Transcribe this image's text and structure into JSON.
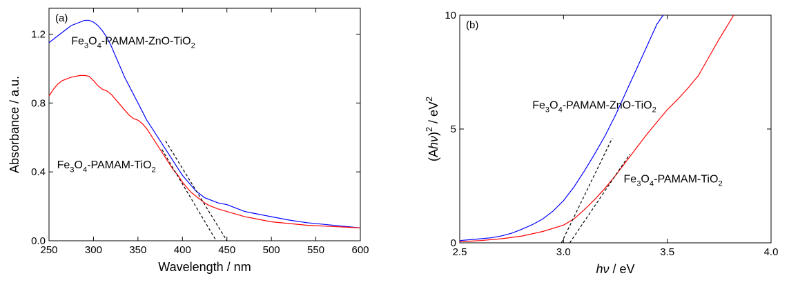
{
  "chart_data": [
    {
      "type": "line",
      "panel_label": "(a)",
      "xlabel": "Wavelength / nm",
      "ylabel": "Absorbance / a.u.",
      "xlim": [
        250,
        600
      ],
      "ylim": [
        0,
        1.35
      ],
      "xticks": [
        250,
        300,
        350,
        400,
        450,
        500,
        550,
        600
      ],
      "yticks": [
        0.0,
        0.4,
        0.8,
        1.2
      ],
      "xtick_labels": [
        "250",
        "300",
        "350",
        "400",
        "450",
        "500",
        "550",
        "600"
      ],
      "ytick_labels": [
        "0.0",
        "0.4",
        "0.8",
        "1.2"
      ],
      "grid": false,
      "series": [
        {
          "color": "#0000ff",
          "x": [
            250,
            255,
            260,
            265,
            270,
            275,
            280,
            285,
            290,
            295,
            300,
            305,
            310,
            315,
            320,
            325,
            330,
            335,
            340,
            345,
            350,
            355,
            360,
            365,
            370,
            375,
            380,
            385,
            390,
            395,
            400,
            405,
            410,
            415,
            420,
            425,
            430,
            435,
            440,
            445,
            450,
            460,
            470,
            480,
            490,
            500,
            520,
            540,
            560,
            580,
            600
          ],
          "y": [
            1.15,
            1.17,
            1.19,
            1.21,
            1.23,
            1.25,
            1.26,
            1.27,
            1.28,
            1.28,
            1.27,
            1.25,
            1.22,
            1.18,
            1.13,
            1.07,
            1.01,
            0.95,
            0.9,
            0.85,
            0.8,
            0.75,
            0.7,
            0.66,
            0.62,
            0.58,
            0.54,
            0.5,
            0.46,
            0.42,
            0.38,
            0.35,
            0.32,
            0.29,
            0.27,
            0.25,
            0.24,
            0.23,
            0.22,
            0.215,
            0.21,
            0.19,
            0.17,
            0.16,
            0.15,
            0.14,
            0.12,
            0.105,
            0.095,
            0.085,
            0.075
          ]
        },
        {
          "color": "#ff0000",
          "x": [
            250,
            255,
            260,
            265,
            270,
            275,
            280,
            285,
            290,
            295,
            300,
            305,
            310,
            315,
            320,
            325,
            330,
            335,
            340,
            345,
            350,
            355,
            360,
            365,
            370,
            375,
            380,
            385,
            390,
            395,
            400,
            405,
            410,
            415,
            420,
            425,
            430,
            440,
            450,
            460,
            470,
            480,
            490,
            500,
            520,
            540,
            560,
            580,
            600
          ],
          "y": [
            0.84,
            0.88,
            0.91,
            0.93,
            0.94,
            0.95,
            0.955,
            0.96,
            0.96,
            0.955,
            0.93,
            0.9,
            0.88,
            0.87,
            0.85,
            0.82,
            0.79,
            0.76,
            0.73,
            0.71,
            0.7,
            0.68,
            0.65,
            0.61,
            0.57,
            0.53,
            0.49,
            0.45,
            0.41,
            0.38,
            0.34,
            0.31,
            0.28,
            0.26,
            0.24,
            0.22,
            0.205,
            0.185,
            0.17,
            0.155,
            0.14,
            0.13,
            0.12,
            0.11,
            0.1,
            0.09,
            0.085,
            0.08,
            0.075
          ]
        }
      ],
      "fit_lines": [
        {
          "x": [
            381,
            450
          ],
          "y": [
            0.58,
            0.0
          ]
        },
        {
          "x": [
            377,
            438
          ],
          "y": [
            0.53,
            0.0
          ]
        }
      ],
      "annotations": [
        {
          "base": "Fe",
          "parts": [
            [
              "Fe",
              ""
            ],
            [
              "3",
              "sub"
            ],
            [
              "O",
              ""
            ],
            [
              "4",
              "sub"
            ],
            [
              "-PAMAM-ZnO-TiO",
              ""
            ],
            [
              "2",
              "sub"
            ]
          ],
          "x": 275,
          "y": 1.14
        },
        {
          "parts": [
            [
              "Fe",
              ""
            ],
            [
              "3",
              "sub"
            ],
            [
              "O",
              ""
            ],
            [
              "4",
              "sub"
            ],
            [
              "-PAMAM-TiO",
              ""
            ],
            [
              "2",
              "sub"
            ]
          ],
          "x": 259,
          "y": 0.42
        }
      ]
    },
    {
      "type": "line",
      "panel_label": "(b)",
      "xlabel_italic": "hν",
      "xlabel_rest": " / eV",
      "ylabel_parts": [
        [
          "(A",
          ""
        ],
        [
          "hν",
          "italic"
        ],
        [
          ")",
          ""
        ],
        [
          "2",
          "sup"
        ],
        [
          " / eV",
          ""
        ],
        [
          "2",
          "sup"
        ]
      ],
      "xlim": [
        2.5,
        4.0
      ],
      "ylim": [
        0,
        10
      ],
      "xticks": [
        2.5,
        3.0,
        3.5,
        4.0
      ],
      "yticks": [
        0,
        5,
        10
      ],
      "xtick_labels": [
        "2.5",
        "3.0",
        "3.5",
        "4.0"
      ],
      "ytick_labels": [
        "0",
        "5",
        "10"
      ],
      "grid": false,
      "series": [
        {
          "color": "#0000ff",
          "x": [
            2.5,
            2.6,
            2.65,
            2.7,
            2.75,
            2.8,
            2.85,
            2.9,
            2.95,
            3.0,
            3.05,
            3.1,
            3.15,
            3.2,
            3.25,
            3.3,
            3.35,
            3.4,
            3.45,
            3.48
          ],
          "y": [
            0.1,
            0.18,
            0.22,
            0.3,
            0.42,
            0.6,
            0.8,
            1.05,
            1.4,
            1.85,
            2.45,
            3.15,
            3.9,
            4.7,
            5.6,
            6.6,
            7.6,
            8.6,
            9.6,
            10.0
          ]
        },
        {
          "color": "#ff0000",
          "x": [
            2.5,
            2.6,
            2.7,
            2.8,
            2.9,
            3.0,
            3.05,
            3.1,
            3.15,
            3.2,
            3.25,
            3.3,
            3.35,
            3.4,
            3.45,
            3.5,
            3.55,
            3.6,
            3.65,
            3.7,
            3.75,
            3.8,
            3.82
          ],
          "y": [
            0.05,
            0.1,
            0.18,
            0.3,
            0.5,
            0.78,
            1.05,
            1.45,
            1.9,
            2.4,
            2.95,
            3.55,
            4.15,
            4.75,
            5.3,
            5.85,
            6.3,
            6.8,
            7.35,
            8.15,
            8.95,
            9.7,
            10.0
          ]
        }
      ],
      "fit_lines": [
        {
          "x": [
            2.99,
            3.235
          ],
          "y": [
            0.0,
            4.6
          ]
        },
        {
          "x": [
            3.03,
            3.32
          ],
          "y": [
            0.0,
            3.9
          ]
        }
      ],
      "annotations": [
        {
          "parts": [
            [
              "Fe",
              ""
            ],
            [
              "3",
              "sub"
            ],
            [
              "O",
              ""
            ],
            [
              "4",
              "sub"
            ],
            [
              "-PAMAM-ZnO-TiO",
              ""
            ],
            [
              "2",
              "sub"
            ]
          ],
          "x": 2.85,
          "y": 5.9
        },
        {
          "parts": [
            [
              "Fe",
              ""
            ],
            [
              "3",
              "sub"
            ],
            [
              "O",
              ""
            ],
            [
              "4",
              "sub"
            ],
            [
              "-PAMAM-TiO",
              ""
            ],
            [
              "2",
              "sub"
            ]
          ],
          "x": 3.29,
          "y": 2.65
        }
      ]
    }
  ]
}
